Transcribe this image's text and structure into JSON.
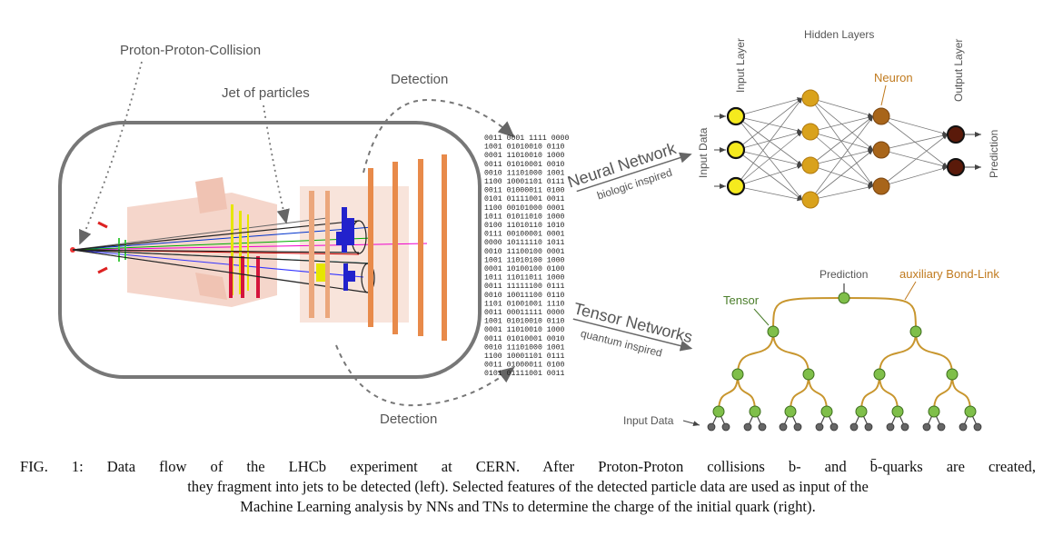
{
  "labels": {
    "collision": "Proton-Proton-Collision",
    "jet": "Jet of particles",
    "detection_top": "Detection",
    "detection_bottom": "Detection",
    "nn_title": "Neural Network",
    "nn_sub": "biologic inspired",
    "tn_title": "Tensor Networks",
    "tn_sub": "quantum inspired",
    "input_layer": "Input Layer",
    "hidden_layers": "Hidden Layers",
    "output_layer": "Output Layer",
    "neuron": "Neuron",
    "input_data_nn": "Input Data",
    "prediction_nn": "Prediction",
    "prediction_tn": "Prediction",
    "aux_link": "auxiliary Bond-Link",
    "tensor": "Tensor",
    "input_data_tn": "Input Data"
  },
  "binary_rows": [
    "0011 0001 1111 0000",
    "1001 01010010 0110",
    "0001 11010010 1000",
    "0011 01010001 0010",
    "0010 11101000 1001",
    "1100 10001101 0111",
    "0011 01000011 0100",
    "0101 01111001 0011",
    "1100 00101000 0001",
    "1011 01011010 1000",
    "0100 11010110 1010",
    "0111 00100001 0001",
    "0000 10111110 1011",
    "0010 11100100 0001",
    "1001 11010100 1000",
    "0001 10100100 0100",
    "1011 11011011 1000",
    "0011 11111100 0111",
    "0010 10011100 0110",
    "1101 01001001 1110",
    "0011 00011111 0000",
    "1001 01010010 0110",
    "0001 11010010 1000",
    "0011 01010001 0010",
    "0010 11101000 1001",
    "1100 10001101 0111",
    "0011 01000011 0100",
    "0101 01111001 0011"
  ],
  "colors": {
    "input_neuron": "#f5ea1e",
    "hidden1_neuron": "#d9a21c",
    "hidden2_neuron": "#a8651a",
    "output_neuron": "#5a1a0a",
    "tensor_node": "#7fbf4a",
    "bond_link": "#c8962e",
    "input_leaf": "#666666",
    "detector_outline": "#777777"
  },
  "caption": {
    "line1": "FIG. 1:  Data flow of the LHCb experiment at CERN. After Proton-Proton collisions b- and b̄-quarks are created,",
    "line2": "they fragment into jets to be detected (left). Selected features of the detected particle data are used as input of the",
    "line3": "Machine Learning analysis by NNs and TNs to determine the charge of the initial quark (right)."
  }
}
